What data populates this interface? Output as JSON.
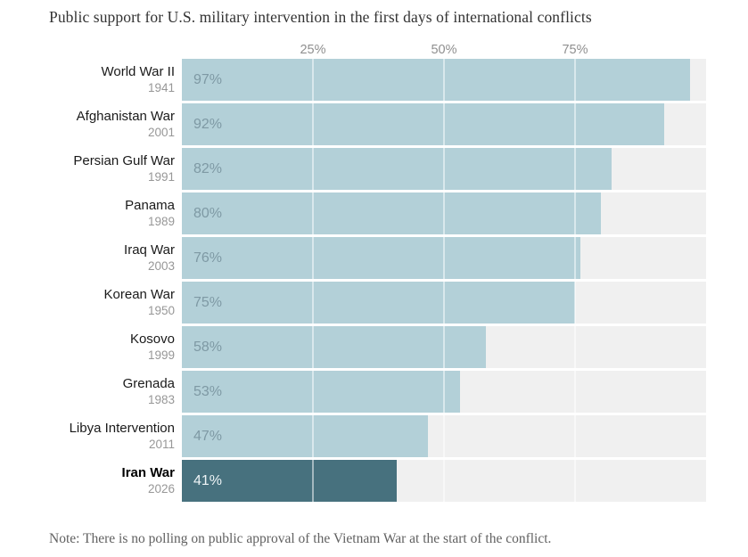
{
  "title": "Public support for U.S. military intervention in the first days of international conflicts",
  "note": "Note: There is no polling on public approval of the Vietnam War at the start of the conflict.",
  "colors": {
    "bar": "#b3d0d8",
    "bar_highlight": "#47717e",
    "track": "#f0f0f0",
    "value_label": "#7e99a4",
    "value_label_highlight": "#eef4f6",
    "gridline": "rgba(255,255,255,0.5)"
  },
  "chart_data": {
    "type": "bar",
    "orientation": "horizontal",
    "title": "Public support for U.S. military intervention in the first days of international conflicts",
    "xlabel": "",
    "ylabel": "",
    "xlim": [
      0,
      100
    ],
    "grid": "vertical white lines at ticks",
    "axis_ticks": [
      {
        "label": "25%",
        "value": 25
      },
      {
        "label": "50%",
        "value": 50
      },
      {
        "label": "75%",
        "value": 75
      }
    ],
    "bars": [
      {
        "label": "World War II",
        "year": "1941",
        "value": 97,
        "value_label": "97%",
        "highlight": false
      },
      {
        "label": "Afghanistan War",
        "year": "2001",
        "value": 92,
        "value_label": "92%",
        "highlight": false
      },
      {
        "label": "Persian Gulf War",
        "year": "1991",
        "value": 82,
        "value_label": "82%",
        "highlight": false
      },
      {
        "label": "Panama",
        "year": "1989",
        "value": 80,
        "value_label": "80%",
        "highlight": false
      },
      {
        "label": "Iraq War",
        "year": "2003",
        "value": 76,
        "value_label": "76%",
        "highlight": false
      },
      {
        "label": "Korean War",
        "year": "1950",
        "value": 75,
        "value_label": "75%",
        "highlight": false
      },
      {
        "label": "Kosovo",
        "year": "1999",
        "value": 58,
        "value_label": "58%",
        "highlight": false
      },
      {
        "label": "Grenada",
        "year": "1983",
        "value": 53,
        "value_label": "53%",
        "highlight": false
      },
      {
        "label": "Libya Intervention",
        "year": "2011",
        "value": 47,
        "value_label": "47%",
        "highlight": false
      },
      {
        "label": "Iran War",
        "year": "2026",
        "value": 41,
        "value_label": "41%",
        "highlight": true
      }
    ]
  }
}
